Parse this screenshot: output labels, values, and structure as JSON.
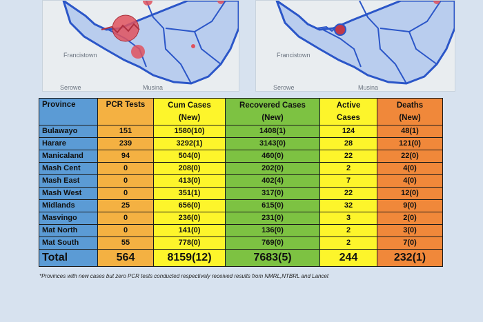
{
  "maps": [
    {
      "labels": {
        "city": "Francistown",
        "bottom_left": "Serowe",
        "bottom_mid": "Musina"
      }
    },
    {
      "labels": {
        "city": "Francistown",
        "bottom_left": "Serowe",
        "bottom_mid": "Musina"
      }
    }
  ],
  "table": {
    "headers": {
      "province": "Province",
      "pcr": "PCR Tests",
      "cum_line1": "Cum Cases",
      "cum_line2": "(New)",
      "rec_line1": "Recovered Cases",
      "rec_line2": "(New)",
      "act_line1": "Active",
      "act_line2": "Cases",
      "dth_line1": "Deaths",
      "dth_line2": "(New)"
    },
    "rows": [
      {
        "province": "Bulawayo",
        "pcr": "151",
        "cum": "1580(10)",
        "rec": "1408(1)",
        "act": "124",
        "dth": "48(1)"
      },
      {
        "province": "Harare",
        "pcr": "239",
        "cum": "3292(1)",
        "rec": "3143(0)",
        "act": "28",
        "dth": "121(0)"
      },
      {
        "province": "Manicaland",
        "pcr": "94",
        "cum": "504(0)",
        "rec": "460(0)",
        "act": "22",
        "dth": "22(0)"
      },
      {
        "province": "Mash Cent",
        "pcr": "0",
        "cum": "208(0)",
        "rec": "202(0)",
        "act": "2",
        "dth": "4(0)"
      },
      {
        "province": "Mash East",
        "pcr": "0",
        "cum": "413(0)",
        "rec": "402(4)",
        "act": "7",
        "dth": "4(0)"
      },
      {
        "province": "Mash West",
        "pcr": "0",
        "cum": "351(1)",
        "rec": "317(0)",
        "act": "22",
        "dth": "12(0)"
      },
      {
        "province": "Midlands",
        "pcr": "25",
        "cum": "656(0)",
        "rec": "615(0)",
        "act": "32",
        "dth": "9(0)"
      },
      {
        "province": "Masvingo",
        "pcr": "0",
        "cum": "236(0)",
        "rec": "231(0)",
        "act": "3",
        "dth": "2(0)"
      },
      {
        "province": "Mat North",
        "pcr": "0",
        "cum": "141(0)",
        "rec": "136(0)",
        "act": "2",
        "dth": "3(0)"
      },
      {
        "province": "Mat South",
        "pcr": "55",
        "cum": "778(0)",
        "rec": "769(0)",
        "act": "2",
        "dth": "7(0)"
      }
    ],
    "total": {
      "province": "Total",
      "pcr": "564",
      "cum": "8159(12)",
      "rec": "7683(5)",
      "act": "244",
      "dth": "232(1)"
    }
  },
  "footnote": "*Provinces  with new cases but zero  PCR tests conducted respectively received results from NMRL,NTBRL and Lancet",
  "colors": {
    "province": "#5b9bd5",
    "pcr": "#f4b142",
    "cum": "#fdf52b",
    "recovered": "#7dc242",
    "active": "#fdf52b",
    "deaths": "#f0883a",
    "map_fill": "#b9cdee",
    "map_border": "#2b56c8",
    "bubble": "#e0525e"
  }
}
